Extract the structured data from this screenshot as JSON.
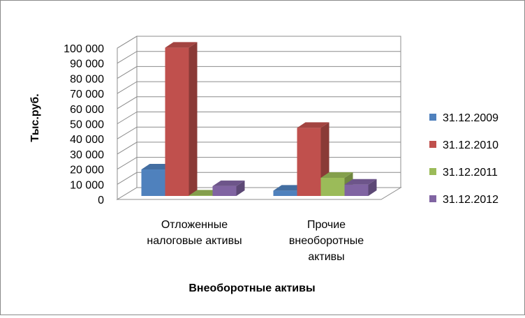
{
  "chart_data": {
    "type": "bar",
    "view": "3d-clustered-column",
    "xlabel": "Внеоборотные активы",
    "ylabel": "Тыс.руб.",
    "ylim": [
      0,
      100000
    ],
    "y_ticks": [
      "0",
      "10 000",
      "20 000",
      "30 000",
      "40 000",
      "50 000",
      "60 000",
      "70 000",
      "80 000",
      "90 000",
      "100 000"
    ],
    "categories": [
      [
        "Отложенные",
        "налоговые активы"
      ],
      [
        "Прочие",
        "внеоборотные",
        "активы"
      ]
    ],
    "series": [
      {
        "name": "31.12.2009",
        "color": "#4f81bd",
        "values": [
          17500,
          3500
        ]
      },
      {
        "name": "31.12.2010",
        "color": "#c0504d",
        "values": [
          98000,
          45000
        ]
      },
      {
        "name": "31.12.2011",
        "color": "#9bbb59",
        "values": [
          300,
          12000
        ]
      },
      {
        "name": "31.12.2012",
        "color": "#8064a2",
        "values": [
          6500,
          7500
        ]
      }
    ],
    "legend_position": "right",
    "grid": true
  }
}
